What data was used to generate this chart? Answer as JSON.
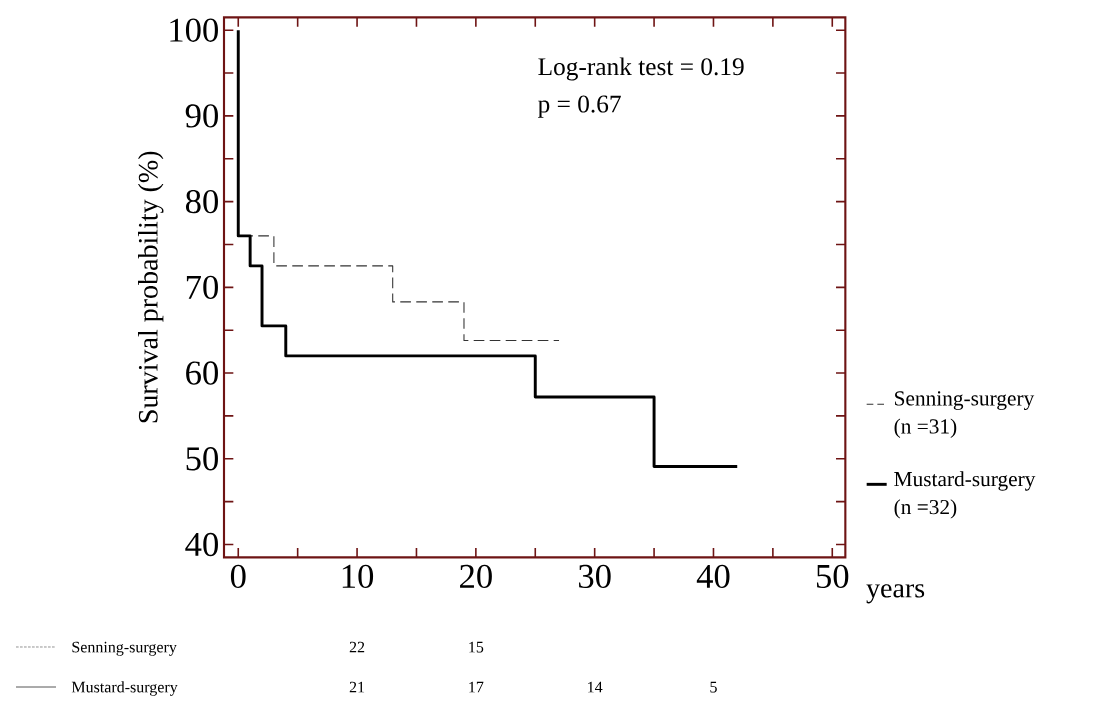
{
  "chart_data": {
    "type": "step",
    "ylabel": "Survival probability (%)",
    "xlabel": "years",
    "xlim": [
      -1.2,
      51.1
    ],
    "ylim": [
      38.5,
      101.5
    ],
    "xticks": [
      0,
      {
        "value": 5,
        "label": null
      },
      10,
      {
        "value": 15,
        "label": null
      },
      20,
      {
        "value": 25,
        "label": null
      },
      30,
      {
        "value": 35,
        "label": null
      },
      40,
      {
        "value": 45,
        "label": null
      },
      50
    ],
    "yticks": [
      40,
      {
        "value": 45,
        "label": null
      },
      50,
      {
        "value": 55,
        "label": null
      },
      60,
      {
        "value": 65,
        "label": null
      },
      70,
      {
        "value": 75,
        "label": null
      },
      80,
      {
        "value": 85,
        "label": null
      },
      90,
      {
        "value": 95,
        "label": null
      },
      100
    ],
    "series": [
      {
        "name": "Senning-surgery (n =31)",
        "color": "#333333",
        "line_style": "dashed",
        "x": [
          0,
          3,
          13,
          19,
          27
        ],
        "values": [
          76,
          72.5,
          68.3,
          63.8,
          63.8
        ]
      },
      {
        "name": "Mustard-surgery (n =32)",
        "color": "#000000",
        "line_style": "solid",
        "x": [
          0,
          0,
          1,
          2,
          4,
          25,
          35,
          42
        ],
        "values": [
          100,
          76,
          72.5,
          65.5,
          62,
          57.2,
          49.1,
          49.1
        ]
      }
    ],
    "legend": "right",
    "grid": false,
    "annotations": [
      "Log-rank test = 0.19",
      "p = 0.67",
      "Senning-surgery",
      "22",
      "15",
      "Mustard-surgery",
      "21",
      "17",
      "14",
      "5"
    ]
  }
}
